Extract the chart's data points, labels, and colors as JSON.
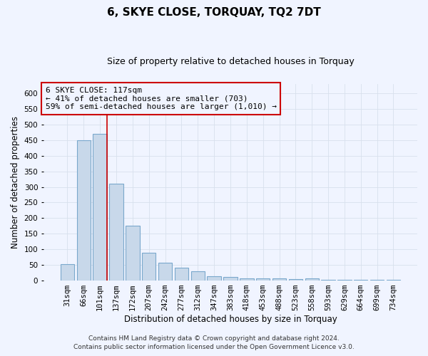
{
  "title": "6, SKYE CLOSE, TORQUAY, TQ2 7DT",
  "subtitle": "Size of property relative to detached houses in Torquay",
  "xlabel": "Distribution of detached houses by size in Torquay",
  "ylabel": "Number of detached properties",
  "footer1": "Contains HM Land Registry data © Crown copyright and database right 2024.",
  "footer2": "Contains public sector information licensed under the Open Government Licence v3.0.",
  "categories": [
    "31sqm",
    "66sqm",
    "101sqm",
    "137sqm",
    "172sqm",
    "207sqm",
    "242sqm",
    "277sqm",
    "312sqm",
    "347sqm",
    "383sqm",
    "418sqm",
    "453sqm",
    "488sqm",
    "523sqm",
    "558sqm",
    "593sqm",
    "629sqm",
    "664sqm",
    "699sqm",
    "734sqm"
  ],
  "values": [
    52,
    450,
    470,
    310,
    175,
    88,
    57,
    42,
    30,
    15,
    12,
    8,
    7,
    6,
    5,
    8,
    3,
    2,
    3,
    2,
    3
  ],
  "bar_color": "#c8d8ea",
  "bar_edge_color": "#7aa8cc",
  "grid_color": "#d8e0ec",
  "annotation_line1": "6 SKYE CLOSE: 117sqm",
  "annotation_line2": "← 41% of detached houses are smaller (703)",
  "annotation_line3": "59% of semi-detached houses are larger (1,010) →",
  "annotation_box_color": "#cc0000",
  "property_line_x": 2.42,
  "property_line_color": "#cc0000",
  "ylim": [
    0,
    630
  ],
  "yticks": [
    0,
    50,
    100,
    150,
    200,
    250,
    300,
    350,
    400,
    450,
    500,
    550,
    600
  ],
  "background_color": "#f0f4ff",
  "title_fontsize": 11,
  "subtitle_fontsize": 9,
  "axis_label_fontsize": 8.5,
  "tick_fontsize": 7.5,
  "footer_fontsize": 6.5
}
